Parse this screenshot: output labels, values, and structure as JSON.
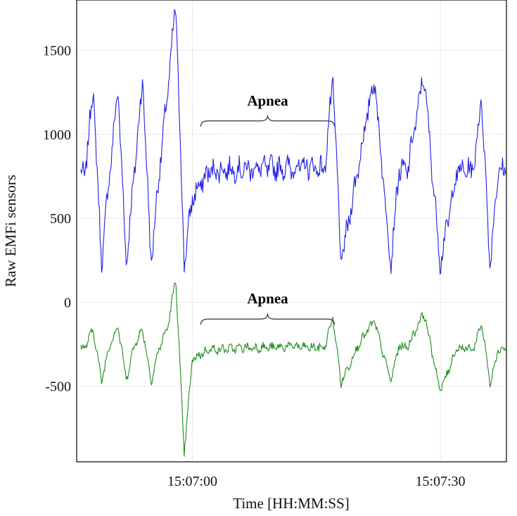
{
  "chart_data": {
    "type": "line",
    "title": "",
    "xlabel": "Time [HH:MM:SS]",
    "ylabel": "Raw EMFi sensors",
    "grid": true,
    "legend": "none",
    "x_unit": "seconds",
    "xlim": [
      "15:06:46",
      "15:07:38"
    ],
    "ylim": [
      -950,
      1800
    ],
    "xticks": [
      {
        "time": "15:07:00",
        "label": "15:07:00"
      },
      {
        "time": "15:07:30",
        "label": "15:07:30"
      }
    ],
    "yticks": [
      {
        "value": 1500,
        "label": "1500"
      },
      {
        "value": 1000,
        "label": "1000"
      },
      {
        "value": 500,
        "label": "500"
      },
      {
        "value": 0,
        "label": "0"
      },
      {
        "value": -500,
        "label": "-500"
      }
    ],
    "annotations": [
      {
        "text": "Apnea",
        "x_start": "15:07:00",
        "x_end": "15:07:16",
        "y": 1080
      },
      {
        "text": "Apnea",
        "x_start": "15:07:00",
        "x_end": "15:07:16",
        "y": -100
      }
    ],
    "series": [
      {
        "color": "#1f1fe6",
        "baseline": 790,
        "x": [
          "15:06:47",
          "15:06:48",
          "15:06:49",
          "15:06:50",
          "15:06:51",
          "15:06:52",
          "15:06:53",
          "15:06:54",
          "15:06:55",
          "15:06:56",
          "15:06:57",
          "15:06:58",
          "15:06:59",
          "15:07:00",
          "15:07:02",
          "15:07:04",
          "15:07:06",
          "15:07:08",
          "15:07:10",
          "15:07:12",
          "15:07:14",
          "15:07:16",
          "15:07:17",
          "15:07:18",
          "15:07:20",
          "15:07:22",
          "15:07:24",
          "15:07:25",
          "15:07:26",
          "15:07:28",
          "15:07:30",
          "15:07:32",
          "15:07:34",
          "15:07:35",
          "15:07:36",
          "15:07:37"
        ],
        "y": [
          760,
          1280,
          230,
          780,
          1270,
          230,
          790,
          1330,
          230,
          780,
          1250,
          1780,
          230,
          620,
          780,
          790,
          790,
          800,
          800,
          800,
          810,
          790,
          1330,
          230,
          790,
          1340,
          230,
          790,
          780,
          1360,
          230,
          780,
          790,
          1220,
          230,
          780
        ]
      },
      {
        "color": "#1e8a1e",
        "baseline": -260,
        "x": [
          "15:06:47",
          "15:06:48",
          "15:06:49",
          "15:06:50",
          "15:06:51",
          "15:06:52",
          "15:06:53",
          "15:06:54",
          "15:06:55",
          "15:06:56",
          "15:06:57",
          "15:06:58",
          "15:06:59",
          "15:07:00",
          "15:07:02",
          "15:07:04",
          "15:07:06",
          "15:07:08",
          "15:07:10",
          "15:07:12",
          "15:07:14",
          "15:07:16",
          "15:07:17",
          "15:07:18",
          "15:07:20",
          "15:07:22",
          "15:07:24",
          "15:07:25",
          "15:07:26",
          "15:07:28",
          "15:07:30",
          "15:07:32",
          "15:07:34",
          "15:07:35",
          "15:07:36",
          "15:07:37"
        ],
        "y": [
          -270,
          -160,
          -470,
          -250,
          -140,
          -460,
          -250,
          -160,
          -470,
          -270,
          -150,
          140,
          -900,
          -340,
          -280,
          -280,
          -270,
          -270,
          -270,
          -260,
          -270,
          -270,
          -90,
          -480,
          -260,
          -110,
          -470,
          -260,
          -270,
          -60,
          -530,
          -270,
          -280,
          -120,
          -480,
          -280
        ]
      }
    ]
  }
}
